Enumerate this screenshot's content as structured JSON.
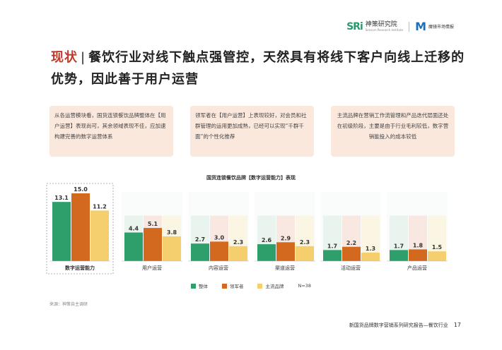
{
  "header": {
    "logo1_mark": "SRi",
    "logo1_cn": "神策研究院",
    "logo1_en": "Sensors Research Institute",
    "logo2_mark": "M",
    "logo2_cn": "魔镜市场情报"
  },
  "title": {
    "highlight": "现状",
    "separator": "|",
    "text": "餐饮行业对线下触点强管控，天然具有将线下客户向线上迁移的优势，因此善于用户运营"
  },
  "cards": [
    "从各运营模块看，国货连锁餐饮品牌整体在【用户运营】表现尚可，其余领域表现不佳，应加速构建完善的数字运营体系",
    "领军者在【用户运营】上表现较好，对会员和社群管理的运用更加成熟，已经可以实现“千群千面”的个性化推荐",
    "主流品牌在营销工作流管理和产品迭代层面还处在初级阶段，主要是由于行业毛利较低，数字营销能投入的成本较低"
  ],
  "chart_data": {
    "type": "bar",
    "title": "国货连锁餐饮品牌【数字运营能力】表现",
    "categories": [
      "数字运营能力",
      "用户运营",
      "内容运营",
      "渠道运营",
      "活动运营",
      "产品运营"
    ],
    "series": [
      {
        "name": "整体",
        "color": "#2e9e6b",
        "values": [
          13.1,
          4.4,
          2.7,
          2.6,
          1.7,
          1.7
        ]
      },
      {
        "name": "领军者",
        "color": "#d2691e",
        "values": [
          15.0,
          5.1,
          3.0,
          2.9,
          2.2,
          1.8
        ]
      },
      {
        "name": "主流品牌",
        "color": "#f5cf6e",
        "values": [
          11.2,
          3.8,
          2.3,
          2.3,
          1.3,
          1.5
        ]
      }
    ],
    "sample_note": "N=38",
    "colors": {
      "panel_bg": "#eef5f0",
      "main_border": "#999999",
      "bg_overall": "#e3f1e8",
      "bg_leader": "#f8e0d6",
      "bg_main": "#fcf4d9"
    }
  },
  "source": "来源：神策自主调研",
  "footer": {
    "text": "新国货品牌数字营销系列研究报告—餐饮行业",
    "page": "17"
  }
}
